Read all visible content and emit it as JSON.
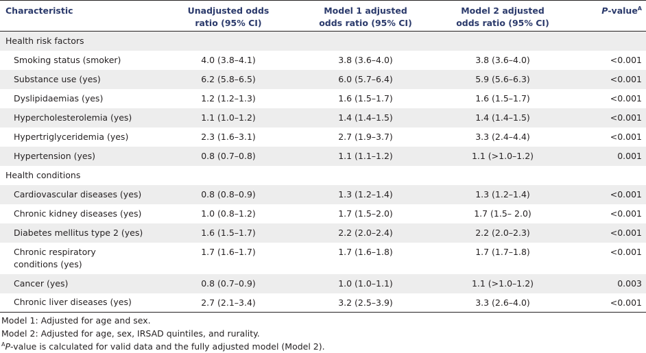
{
  "header": {
    "characteristic": "Characteristic",
    "unadj_l1": "Unadjusted odds",
    "unadj_l2": "ratio (95% CI)",
    "m1_l1": "Model 1 adjusted",
    "m1_l2": "odds ratio (95% CI)",
    "m2_l1": "Model 2 adjusted",
    "m2_l2": "odds ratio (95% CI)",
    "p_italic": "P",
    "p_rest": "-value",
    "p_sup": "A"
  },
  "sections": {
    "risk": "Health risk factors",
    "conditions": "Health conditions"
  },
  "risk_rows": [
    {
      "label": "Smoking status (smoker)",
      "unadj": "4.0 (3.8–4.1)",
      "m1": "3.8 (3.6–4.0)",
      "m2": "3.8 (3.6–4.0)",
      "p": "<0.001"
    },
    {
      "label": "Substance use (yes)",
      "unadj": "6.2 (5.8–6.5)",
      "m1": "6.0 (5.7–6.4)",
      "m2": "5.9 (5.6–6.3)",
      "p": "<0.001"
    },
    {
      "label": "Dyslipidaemias (yes)",
      "unadj": "1.2 (1.2–1.3)",
      "m1": "1.6 (1.5–1.7)",
      "m2": "1.6 (1.5–1.7)",
      "p": "<0.001"
    },
    {
      "label": "Hypercholesterolemia (yes)",
      "unadj": "1.1 (1.0–1.2)",
      "m1": "1.4 (1.4–1.5)",
      "m2": "1.4 (1.4–1.5)",
      "p": "<0.001"
    },
    {
      "label": "Hypertriglyceridemia (yes)",
      "unadj": "2.3 (1.6–3.1)",
      "m1": "2.7 (1.9–3.7)",
      "m2": "3.3 (2.4–4.4)",
      "p": "<0.001"
    },
    {
      "label": "Hypertension (yes)",
      "unadj": "0.8 (0.7–0.8)",
      "m1": "1.1 (1.1–1.2)",
      "m2": "1.1 (>1.0–1.2)",
      "p": "0.001"
    }
  ],
  "condition_rows": [
    {
      "label": "Cardiovascular diseases (yes)",
      "unadj": "0.8 (0.8–0.9)",
      "m1": "1.3 (1.2–1.4)",
      "m2": "1.3 (1.2–1.4)",
      "p": "<0.001"
    },
    {
      "label": "Chronic kidney diseases (yes)",
      "unadj": "1.0 (0.8–1.2)",
      "m1": "1.7 (1.5–2.0)",
      "m2": "1.7 (1.5– 2.0)",
      "p": "<0.001"
    },
    {
      "label": "Diabetes mellitus type 2 (yes)",
      "unadj": "1.6 (1.5–1.7)",
      "m1": "2.2 (2.0–2.4)",
      "m2": "2.2 (2.0–2.3)",
      "p": "<0.001"
    },
    {
      "label_l1": "Chronic respiratory",
      "label_l2": "conditions (yes)",
      "unadj": "1.7 (1.6–1.7)",
      "m1": "1.7 (1.6–1.8)",
      "m2": "1.7 (1.7–1.8)",
      "p": "<0.001"
    },
    {
      "label": "Cancer (yes)",
      "unadj": "0.8 (0.7–0.9)",
      "m1": "1.0 (1.0–1.1)",
      "m2": "1.1 (>1.0–1.2)",
      "p": "0.003"
    },
    {
      "label": "Chronic liver diseases (yes)",
      "unadj": "2.7 (2.1–3.4)",
      "m1": "3.2 (2.5–3.9)",
      "m2": "3.3 (2.6–4.0)",
      "p": "<0.001"
    }
  ],
  "footnotes": {
    "model1": "Model 1: Adjusted for age and sex.",
    "model2": "Model 2: Adjusted for age, sex, IRSAD quintiles, and rurality.",
    "a_sup": "A",
    "a_italic": "P",
    "a_rest": "-value is calculated for valid data and the fully adjusted model (Model 2)."
  }
}
